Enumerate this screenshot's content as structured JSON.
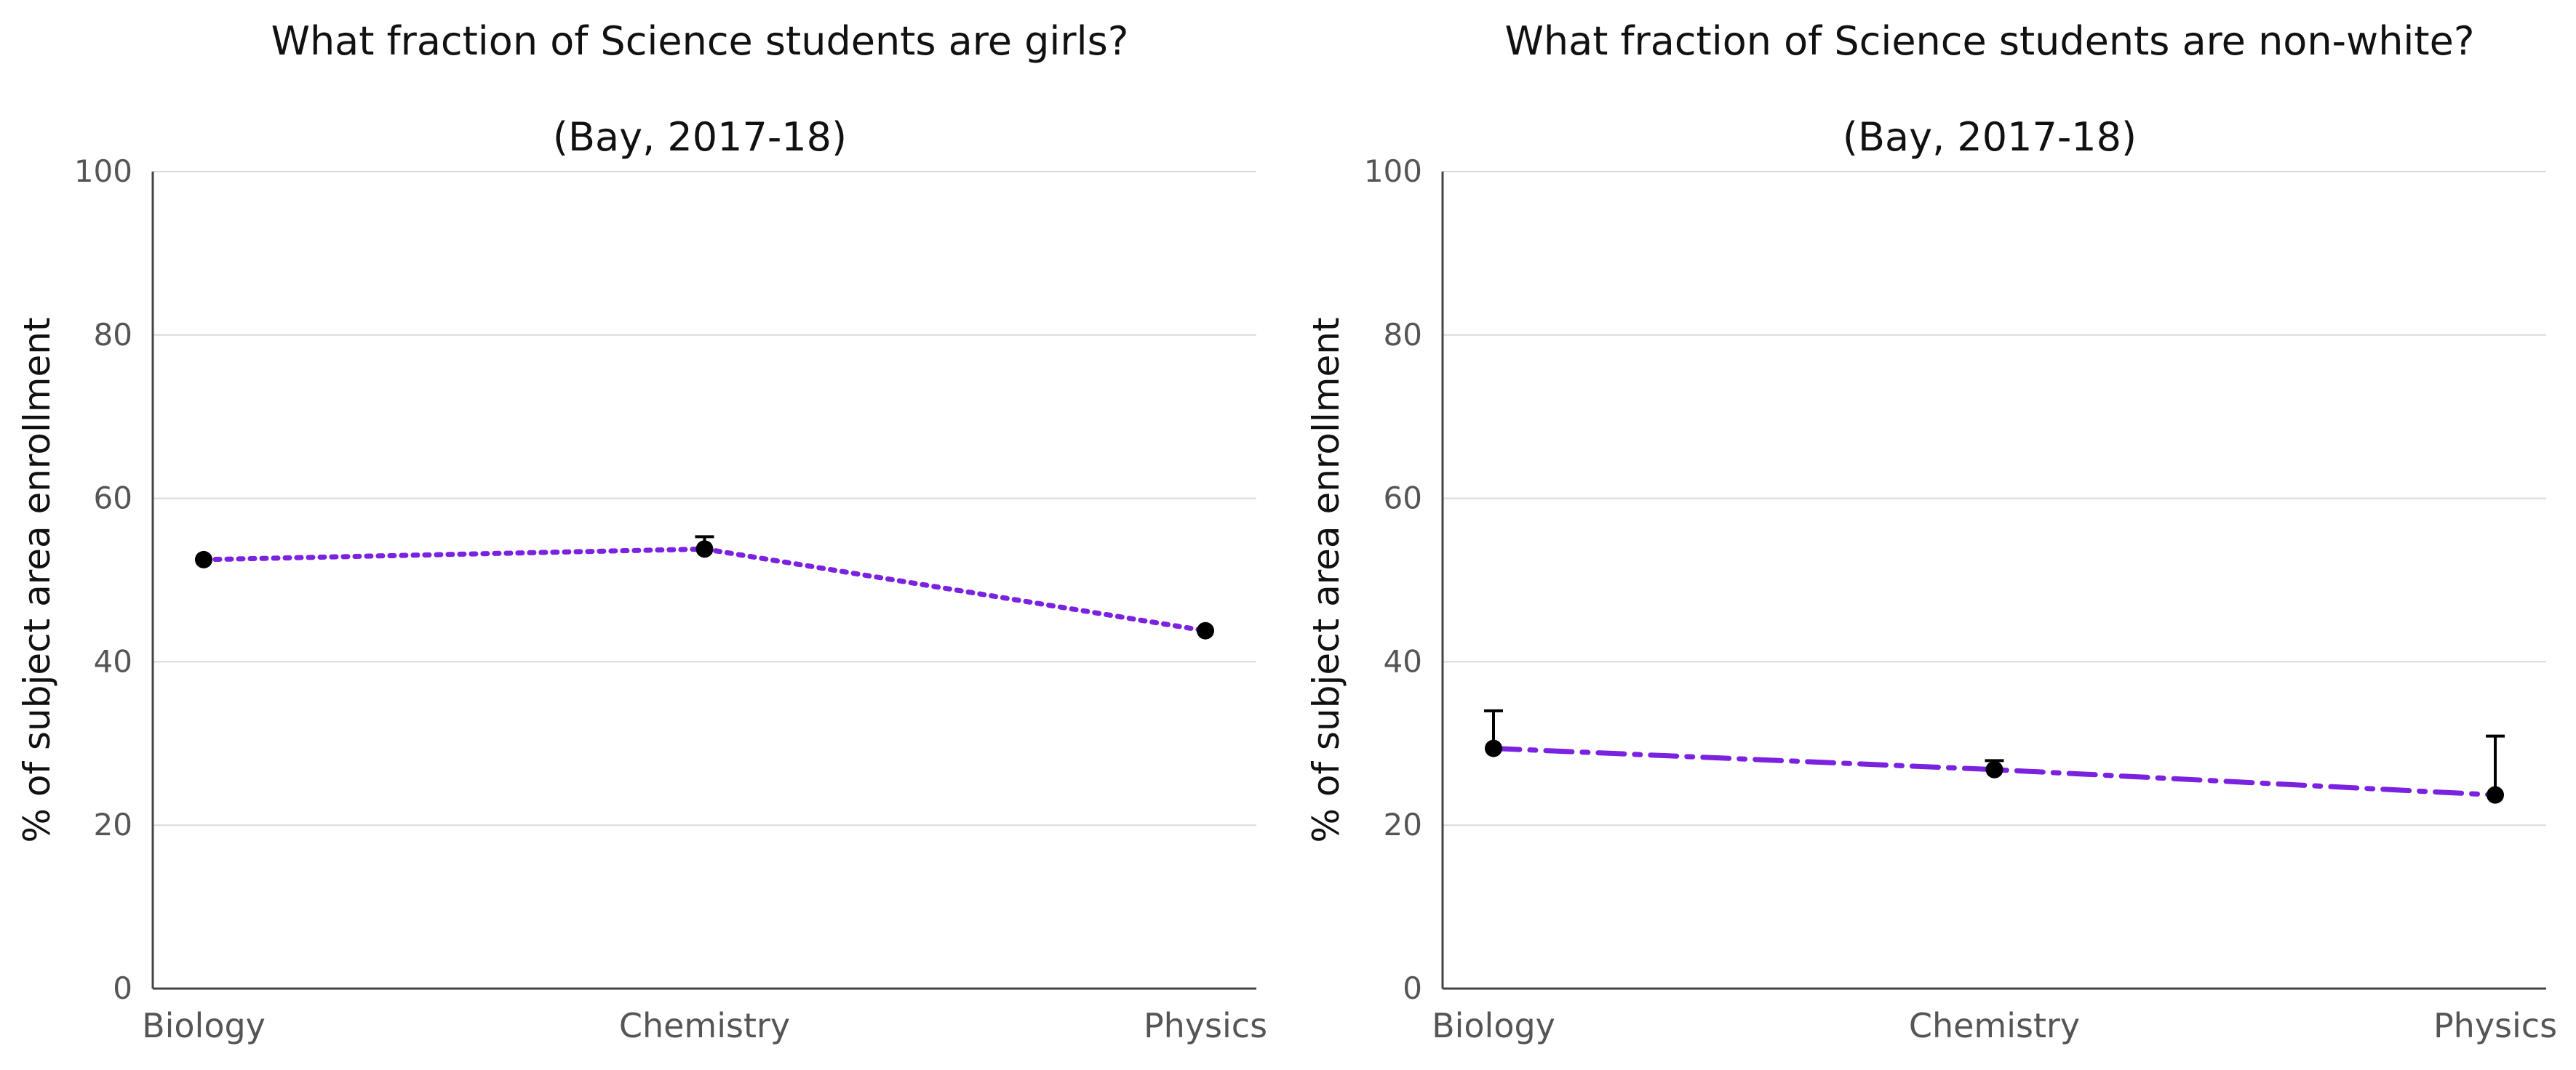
{
  "chart_data": [
    {
      "type": "line",
      "title": "What fraction of Science students are girls?",
      "subtitle": "(Bay, 2017-18)",
      "ylabel": "% of subject area enrollment",
      "xlabel": "",
      "categories": [
        "Biology",
        "Chemistry",
        "Physics"
      ],
      "ylim": [
        0,
        100
      ],
      "yticks": [
        0,
        20,
        40,
        60,
        80,
        100
      ],
      "grid": true,
      "series": [
        {
          "values": [
            52.5,
            53.8,
            43.8
          ],
          "error_upper": [
            52.5,
            55.3,
            43.8
          ],
          "line_style": "dotted",
          "color": "#7B22E0",
          "marker_color": "#000000"
        }
      ]
    },
    {
      "type": "line",
      "title": "What fraction of Science students are non-white?",
      "subtitle": "(Bay, 2017-18)",
      "ylabel": "% of subject area enrollment",
      "xlabel": "",
      "categories": [
        "Biology",
        "Chemistry",
        "Physics"
      ],
      "ylim": [
        0,
        100
      ],
      "yticks": [
        0,
        20,
        40,
        60,
        80,
        100
      ],
      "grid": true,
      "series": [
        {
          "values": [
            29.4,
            26.8,
            23.7
          ],
          "error_upper": [
            34.0,
            27.9,
            30.9
          ],
          "line_style": "dashdot",
          "color": "#7B22E0",
          "marker_color": "#000000"
        }
      ]
    }
  ]
}
